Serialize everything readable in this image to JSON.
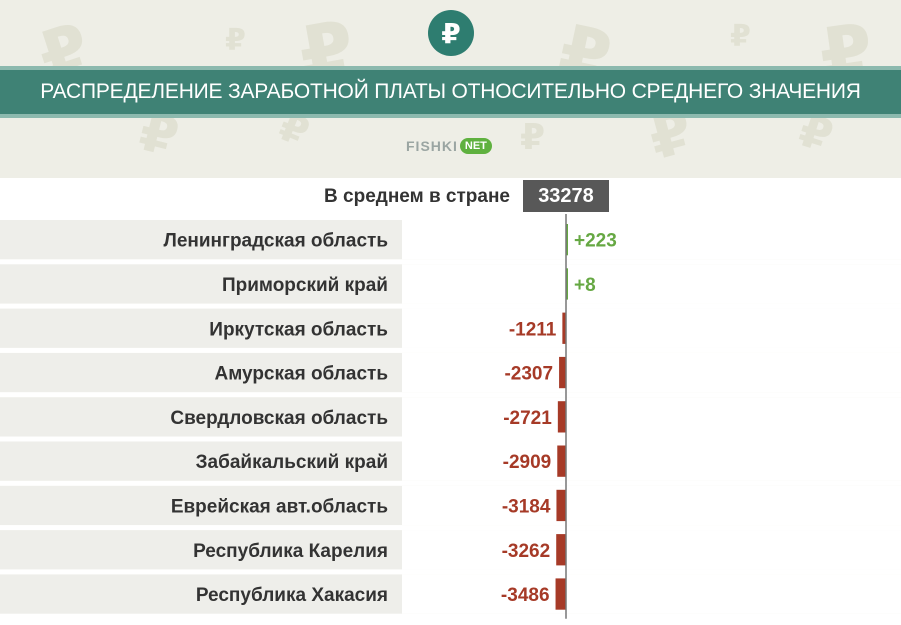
{
  "header": {
    "logo_symbol": "₽",
    "title": "РАСПРЕДЕЛЕНИЕ ЗАРАБОТНОЙ ПЛАТЫ ОТНОСИТЕЛЬНО СРЕДНЕГО ЗНАЧЕНИЯ",
    "brand": "FISHKI",
    "brand_suffix": "NET"
  },
  "average": {
    "label": "В среднем в стране",
    "value": "33278"
  },
  "colors": {
    "positive": "#66a843",
    "negative": "#a63a27",
    "band": "#3f8275",
    "axis": "#777777"
  },
  "chart_data": {
    "type": "bar",
    "orientation": "horizontal",
    "title": "РАСПРЕДЕЛЕНИЕ ЗАРАБОТНОЙ ПЛАТЫ ОТНОСИТЕЛЬНО СРЕДНЕГО ЗНАЧЕНИЯ",
    "baseline_label": "В среднем в стране",
    "baseline_value": 33278,
    "categories": [
      "Ленинградская область",
      "Приморский край",
      "Иркутская область",
      "Амурская область",
      "Свердловская область",
      "Забайкальский край",
      "Еврейская авт.область",
      "Республика Карелия",
      "Республика Хакасия"
    ],
    "values": [
      223,
      8,
      -1211,
      -2307,
      -2721,
      -2909,
      -3184,
      -3262,
      -3486
    ],
    "value_labels": [
      "+223",
      "+8",
      "-1211",
      "-2307",
      "-2721",
      "-2909",
      "-3184",
      "-3262",
      "-3486"
    ]
  }
}
